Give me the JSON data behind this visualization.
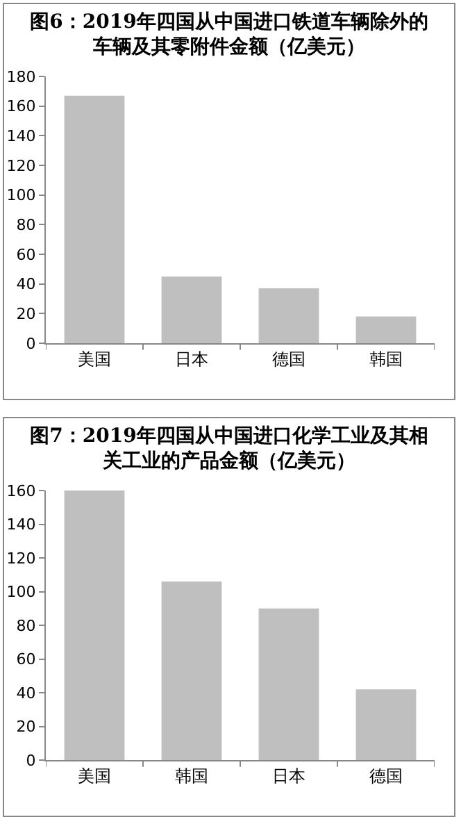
{
  "chart_data": [
    {
      "type": "bar",
      "title": "图6：2019年四国从中国进口铁道车辆除外的车辆及其零附件金额（亿美元）",
      "categories": [
        "美国",
        "日本",
        "德国",
        "韩国"
      ],
      "values": [
        167,
        45,
        37,
        18
      ],
      "color": "#bfbfbf",
      "ylim": [
        0,
        180
      ],
      "yticks": [
        0,
        20,
        40,
        60,
        80,
        100,
        120,
        140,
        160,
        180
      ],
      "grid": false,
      "legend": false
    },
    {
      "type": "bar",
      "title": "图7：2019年四国从中国进口化学工业及其相关工业的产品金额（亿美元）",
      "categories": [
        "美国",
        "韩国",
        "日本",
        "德国"
      ],
      "values": [
        160,
        106,
        90,
        42
      ],
      "color": "#bfbfbf",
      "ylim": [
        0,
        160
      ],
      "yticks": [
        0,
        20,
        40,
        60,
        80,
        100,
        120,
        140,
        160
      ],
      "grid": false,
      "legend": false
    }
  ]
}
